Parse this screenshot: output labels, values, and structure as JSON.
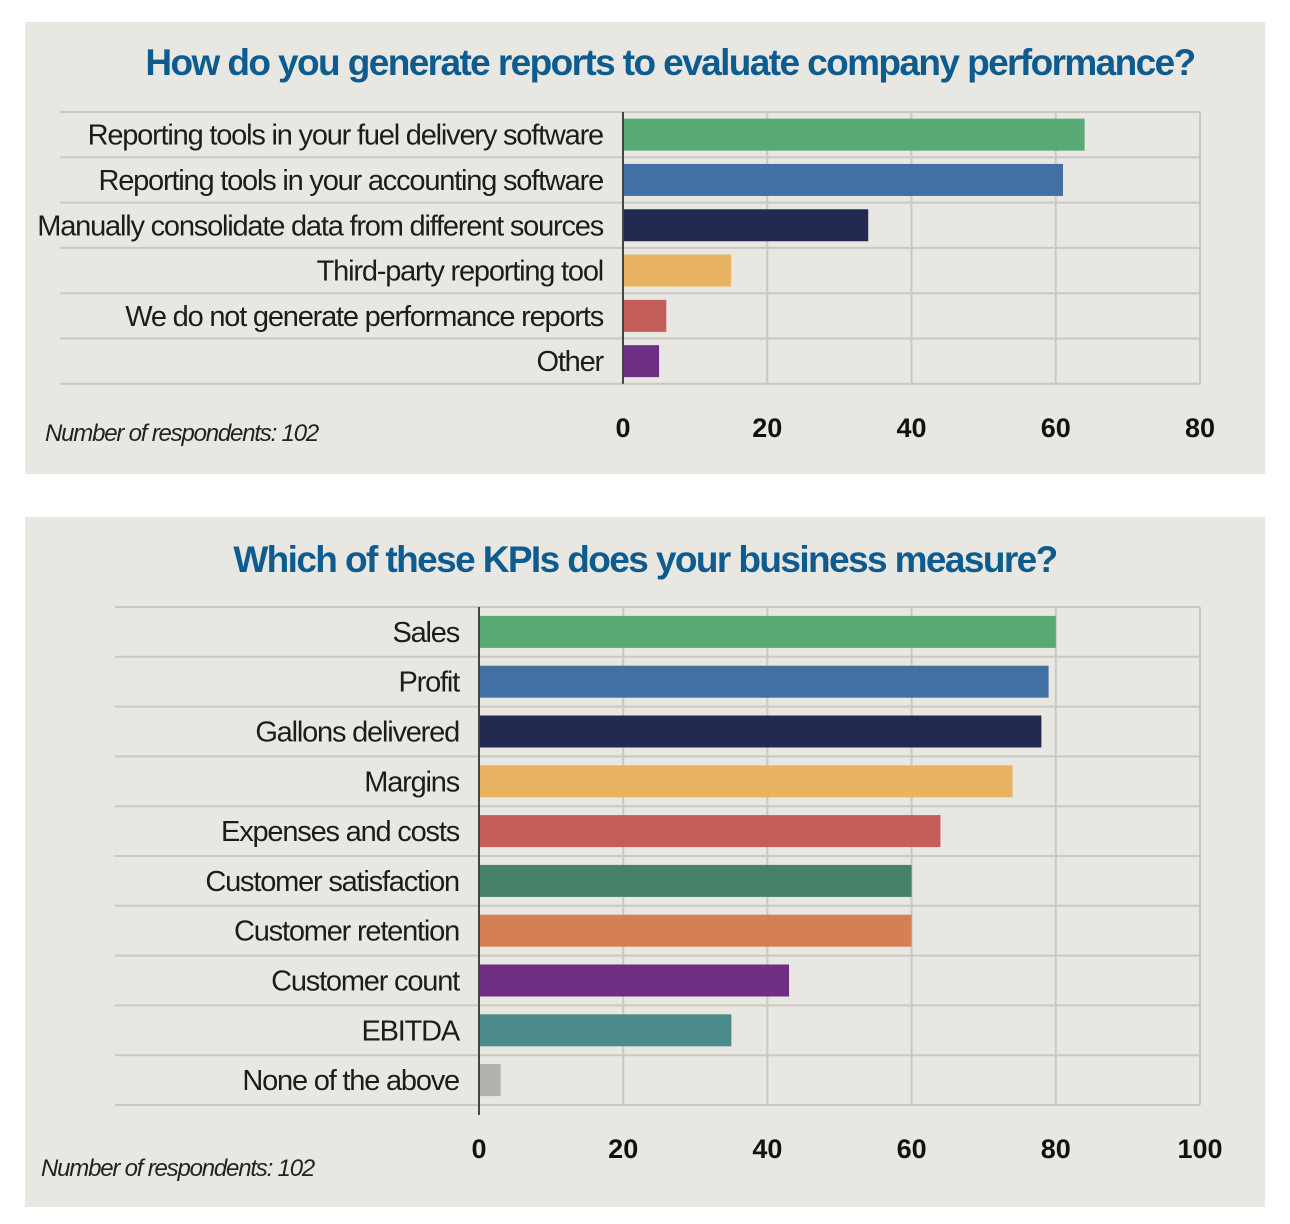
{
  "colors": {
    "title": "#0e5c8f",
    "panel_bg": "#e8e7e2",
    "grid": "#c9c8c2"
  },
  "chart_data": [
    {
      "type": "bar",
      "orientation": "horizontal",
      "title": "How do you generate reports to evaluate company performance?",
      "note": "Number of respondents: 102",
      "categories": [
        "Reporting tools in your fuel delivery software",
        "Reporting tools in your accounting software",
        "Manually consolidate data from different sources",
        "Third-party reporting tool",
        "We do not generate performance reports",
        "Other"
      ],
      "values": [
        64,
        61,
        34,
        15,
        6,
        5
      ],
      "colors": [
        "#57aa74",
        "#4170a3",
        "#222a51",
        "#e9b461",
        "#c35f58",
        "#6e2e83"
      ],
      "xlim": [
        0,
        80
      ],
      "xticks": [
        0,
        20,
        40,
        60,
        80
      ],
      "grid": true,
      "xlabel": "",
      "ylabel": ""
    },
    {
      "type": "bar",
      "orientation": "horizontal",
      "title": "Which of these KPIs does your business measure?",
      "note": "Number of respondents: 102",
      "categories": [
        "Sales",
        "Profit",
        "Gallons delivered",
        "Margins",
        "Expenses and costs",
        "Customer satisfaction",
        "Customer retention",
        "Customer count",
        "EBITDA",
        "None of the above"
      ],
      "values": [
        80,
        79,
        78,
        74,
        64,
        60,
        60,
        43,
        35,
        3
      ],
      "colors": [
        "#57aa74",
        "#4170a3",
        "#222a51",
        "#e9b461",
        "#c35f58",
        "#468169",
        "#d67f55",
        "#6e2e83",
        "#4b8b8b",
        "#b1b1ae"
      ],
      "xlim": [
        0,
        100
      ],
      "xticks": [
        0,
        20,
        40,
        60,
        80,
        100
      ],
      "grid": true,
      "xlabel": "",
      "ylabel": ""
    }
  ]
}
